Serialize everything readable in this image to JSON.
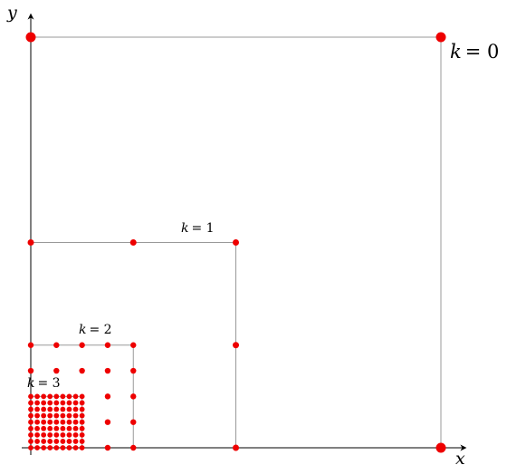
{
  "axes": {
    "x_label": "x",
    "y_label": "y"
  },
  "levels": [
    {
      "k": 0,
      "label_var": "k",
      "label_eq": "= 0",
      "side": 1.0,
      "points_per_side": 2
    },
    {
      "k": 1,
      "label_var": "k",
      "label_eq": "= 1",
      "side": 0.5,
      "points_per_side": 3
    },
    {
      "k": 2,
      "label_var": "k",
      "label_eq": "= 2",
      "side": 0.25,
      "points_per_side": 5
    },
    {
      "k": 3,
      "label_var": "k",
      "label_eq": "= 3",
      "side": 0.125,
      "points_per_side": 9
    }
  ],
  "colors": {
    "point": "#ee0000",
    "square": "#999999",
    "axis": "#000000"
  }
}
